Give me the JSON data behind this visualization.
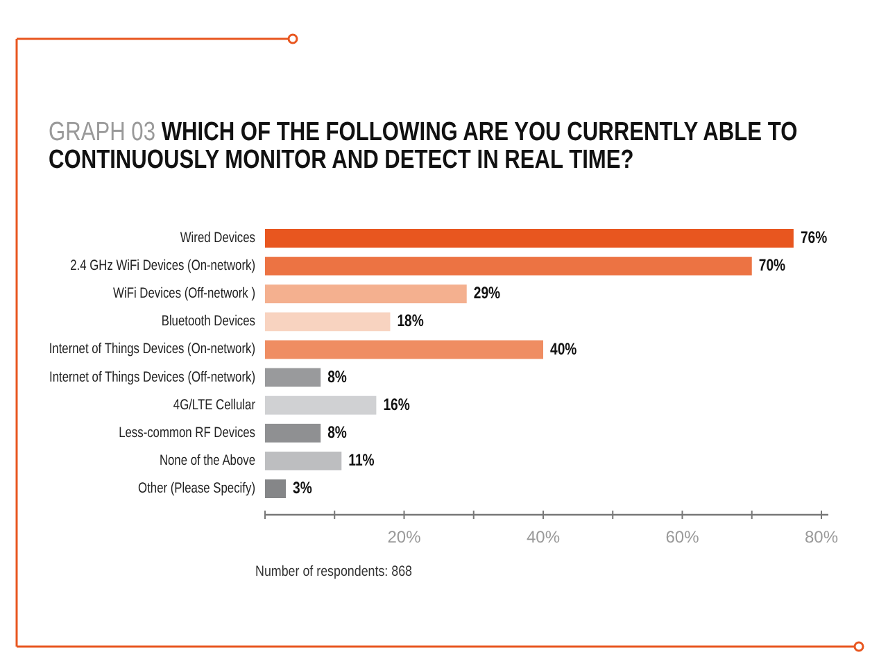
{
  "chart_data": {
    "type": "bar",
    "orientation": "horizontal",
    "subtitle": "GRAPH 03",
    "title": "WHICH OF THE FOLLOWING ARE YOU CURRENTLY ABLE TO CONTINUOUSLY MONITOR AND DETECT IN REAL TIME?",
    "categories": [
      "Wired Devices",
      "2.4 GHz WiFi Devices (On-network)",
      "WiFi Devices (Off-network )",
      "Bluetooth Devices",
      "Internet of Things Devices (On-network)",
      "Internet of Things Devices (Off-network)",
      "4G/LTE Cellular",
      "Less-common RF Devices",
      "None of the Above",
      "Other (Please Specify)"
    ],
    "values": [
      76,
      70,
      29,
      18,
      40,
      8,
      16,
      8,
      11,
      3
    ],
    "colors": [
      "#e8561f",
      "#ec7343",
      "#f4b08f",
      "#f8d3c0",
      "#ef8d62",
      "#999a9c",
      "#d0d1d3",
      "#8f9092",
      "#bdbec0",
      "#858688"
    ],
    "value_labels": [
      "76%",
      "70%",
      "29%",
      "18%",
      "40%",
      "8%",
      "16%",
      "8%",
      "11%",
      "3%"
    ],
    "xlim": [
      0,
      81
    ],
    "xticks": [
      {
        "value": 0,
        "label": null
      },
      {
        "value": 10,
        "label": null
      },
      {
        "value": 20,
        "label": "20%"
      },
      {
        "value": 30,
        "label": null
      },
      {
        "value": 40,
        "label": "40%"
      },
      {
        "value": 50,
        "label": null
      },
      {
        "value": 60,
        "label": "60%"
      },
      {
        "value": 70,
        "label": null
      },
      {
        "value": 80,
        "label": "80%"
      }
    ],
    "grid": false,
    "annotations": [
      "Number of respondents: 868"
    ]
  }
}
